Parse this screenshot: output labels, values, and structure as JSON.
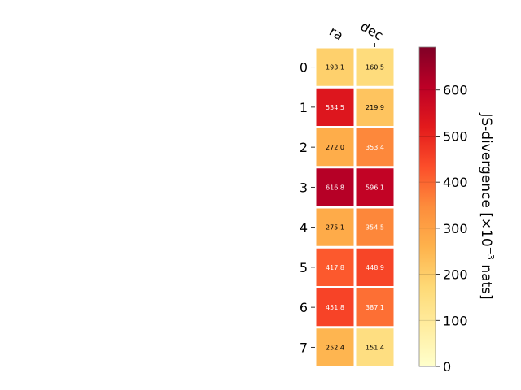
{
  "chart_data": {
    "type": "heatmap",
    "columns": [
      "ra",
      "dec"
    ],
    "rows": [
      "0",
      "1",
      "2",
      "3",
      "4",
      "5",
      "6",
      "7"
    ],
    "values": [
      [
        193.1,
        160.5
      ],
      [
        534.5,
        219.9
      ],
      [
        272.0,
        353.4
      ],
      [
        616.8,
        596.1
      ],
      [
        275.1,
        354.5
      ],
      [
        417.8,
        448.9
      ],
      [
        451.8,
        387.1
      ],
      [
        252.4,
        151.4
      ]
    ],
    "value_labels": [
      [
        "193.1",
        "160.5"
      ],
      [
        "534.5",
        "219.9"
      ],
      [
        "272.0",
        "353.4"
      ],
      [
        "616.8",
        "596.1"
      ],
      [
        "275.1",
        "354.5"
      ],
      [
        "417.8",
        "448.9"
      ],
      [
        "451.8",
        "387.1"
      ],
      [
        "252.4",
        "151.4"
      ]
    ],
    "colorbar": {
      "label_main": "JS-divergence [×10",
      "label_exp": "−3",
      "label_unit": " nats]",
      "ticks": [
        "0",
        "100",
        "200",
        "300",
        "400",
        "500",
        "600"
      ],
      "tick_values": [
        0,
        100,
        200,
        300,
        400,
        500,
        600
      ],
      "range": [
        0,
        693
      ],
      "colormap": "YlOrRd"
    }
  }
}
